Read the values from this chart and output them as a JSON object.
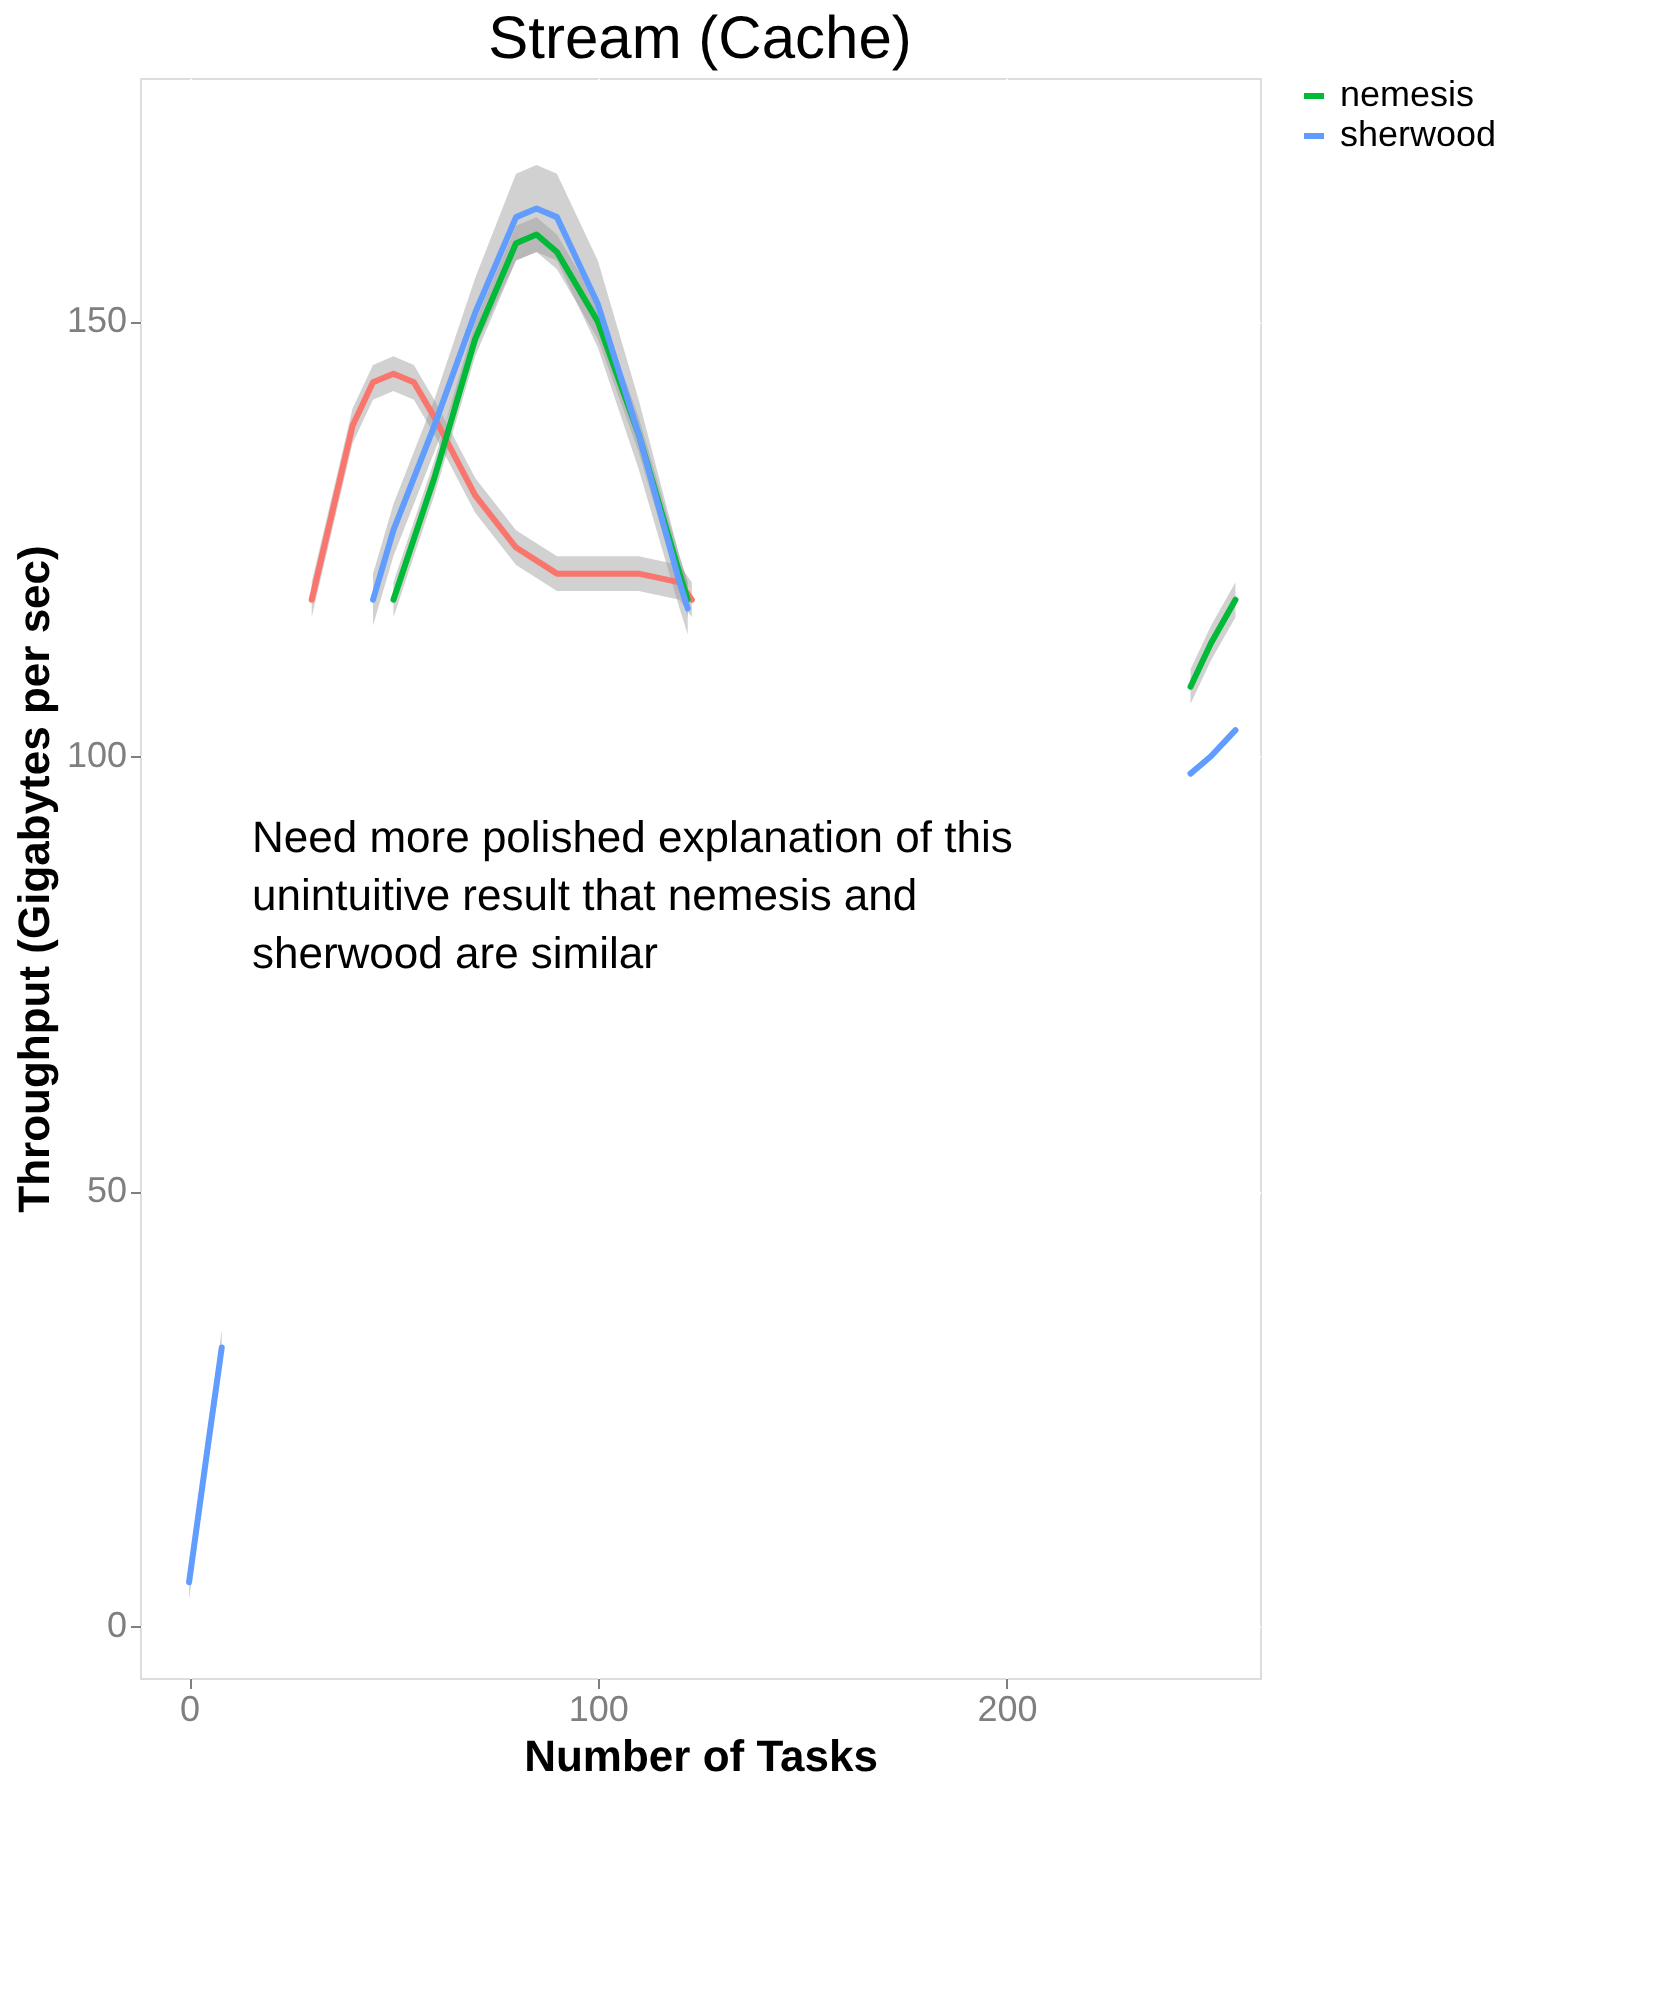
{
  "chart_data": {
    "type": "line",
    "title": "Stream (Cache)",
    "xlabel": "Number of Tasks",
    "ylabel": "Throughput (Gigabytes per sec)",
    "xlim": [
      -12,
      262
    ],
    "ylim": [
      -6,
      178
    ],
    "xticks": [
      0,
      100,
      200
    ],
    "yticks": [
      0,
      50,
      100,
      150
    ],
    "grid": true,
    "legend": "right",
    "marker": "none",
    "line_style": "solid",
    "annotations": [
      "Need more polished explanation of this unintuitive result that nemesis and sherwood are similar"
    ],
    "series": [
      {
        "color": "#f8766d",
        "x": [
          30,
          35,
          40,
          45,
          50,
          55,
          60,
          70,
          80,
          90,
          100,
          110,
          120,
          123
        ],
        "values": [
          118,
          128,
          138,
          143,
          144,
          143,
          139,
          130,
          124,
          121,
          121,
          121,
          120,
          118
        ],
        "lower": [
          116,
          126,
          136,
          141,
          142,
          141,
          137,
          128,
          122,
          119,
          119,
          119,
          118,
          116
        ],
        "upper": [
          120,
          130,
          140,
          145,
          146,
          145,
          141,
          132,
          126,
          123,
          123,
          123,
          122,
          120
        ]
      },
      {
        "name": "nemesis",
        "color": "#00ba38",
        "x": [
          50,
          60,
          70,
          80,
          85,
          90,
          100,
          110,
          120,
          122,
          200,
          245,
          250,
          256
        ],
        "values": [
          118,
          132,
          148,
          159,
          160,
          158,
          150,
          137,
          121,
          118,
          null,
          108,
          113,
          118
        ],
        "lower": [
          116,
          130,
          146,
          157,
          158,
          156,
          148,
          135,
          119,
          116,
          null,
          106,
          111,
          116
        ],
        "upper": [
          120,
          134,
          150,
          161,
          162,
          160,
          152,
          139,
          123,
          120,
          null,
          110,
          115,
          120
        ]
      },
      {
        "name": "sherwood",
        "color": "#619cff",
        "x": [
          0,
          5,
          8,
          30,
          45,
          50,
          60,
          70,
          80,
          85,
          90,
          100,
          110,
          120,
          122,
          200,
          245,
          250,
          256
        ],
        "values": [
          5,
          22,
          32,
          null,
          118,
          126,
          138,
          151,
          162,
          163,
          162,
          152,
          137,
          120,
          117,
          null,
          98,
          100,
          103
        ],
        "lower": [
          3,
          20,
          30,
          null,
          115,
          123,
          135,
          147,
          157,
          158,
          157,
          147,
          133,
          117,
          114,
          null,
          null,
          null,
          null
        ],
        "upper": [
          7,
          24,
          34,
          null,
          121,
          129,
          141,
          155,
          167,
          168,
          167,
          157,
          141,
          123,
          120,
          null,
          null,
          null,
          null
        ]
      }
    ]
  }
}
